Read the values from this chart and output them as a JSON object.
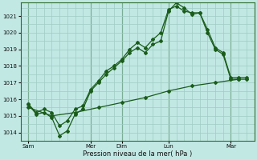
{
  "title": "Pression niveau de la mer( hPa )",
  "bg_color": "#c2e8e4",
  "grid_color": "#9eccc4",
  "line_color": "#1a5c1a",
  "ylim": [
    1013.5,
    1021.8
  ],
  "yticks": [
    1014,
    1015,
    1016,
    1017,
    1018,
    1019,
    1020,
    1021
  ],
  "xlim": [
    0,
    30
  ],
  "xtick_positions": [
    1,
    9,
    13,
    19,
    27
  ],
  "xtick_labels": [
    "Sam",
    "Mer",
    "Dim",
    "Lun",
    "Mar"
  ],
  "vline_positions": [
    1,
    9,
    13,
    19,
    27
  ],
  "series1_x": [
    1,
    2,
    3,
    4,
    5,
    6,
    7,
    8,
    9,
    10,
    11,
    12,
    13,
    14,
    15,
    16,
    17,
    18,
    19,
    20,
    21,
    22,
    23,
    24,
    25,
    26,
    27,
    28,
    29
  ],
  "series1_y": [
    1015.7,
    1015.1,
    1015.2,
    1014.9,
    1013.8,
    1014.1,
    1015.1,
    1015.4,
    1016.5,
    1017.0,
    1017.5,
    1017.9,
    1018.3,
    1018.8,
    1019.1,
    1018.8,
    1019.3,
    1019.5,
    1021.3,
    1021.8,
    1021.5,
    1021.1,
    1021.2,
    1020.0,
    1019.0,
    1018.7,
    1017.2,
    1017.2,
    1017.2
  ],
  "series2_x": [
    1,
    2,
    3,
    4,
    5,
    6,
    7,
    8,
    9,
    10,
    11,
    12,
    13,
    14,
    15,
    16,
    17,
    18,
    19,
    20,
    21,
    22,
    23,
    24,
    25,
    26,
    27,
    28,
    29
  ],
  "series2_y": [
    1015.7,
    1015.2,
    1015.4,
    1015.2,
    1014.4,
    1014.7,
    1015.4,
    1015.6,
    1016.6,
    1017.1,
    1017.7,
    1018.0,
    1018.4,
    1019.0,
    1019.4,
    1019.1,
    1019.6,
    1020.0,
    1021.4,
    1021.6,
    1021.3,
    1021.2,
    1021.2,
    1020.2,
    1019.1,
    1018.8,
    1017.3,
    1017.3,
    1017.3
  ],
  "series3_x": [
    1,
    4,
    7,
    10,
    13,
    16,
    19,
    22,
    25,
    28
  ],
  "series3_y": [
    1015.5,
    1015.0,
    1015.2,
    1015.5,
    1015.8,
    1016.1,
    1016.5,
    1016.8,
    1017.0,
    1017.2
  ]
}
